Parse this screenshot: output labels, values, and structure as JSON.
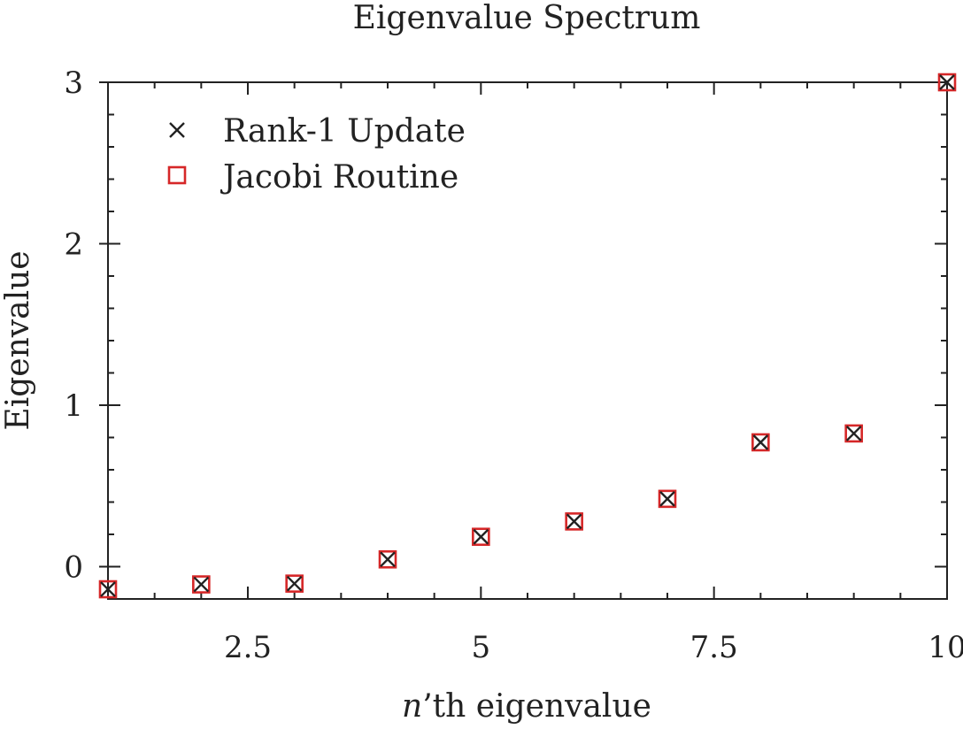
{
  "chart_data": {
    "type": "scatter",
    "title": "Eigenvalue Spectrum",
    "xlabel_italic": "n",
    "xlabel_rest": "’th eigenvalue",
    "ylabel": "Eigenvalue",
    "xlim": [
      1,
      10
    ],
    "ylim": [
      -0.2,
      3
    ],
    "x_ticks": [
      2.5,
      5,
      7.5,
      10
    ],
    "x_tick_labels": [
      "2.5",
      "5",
      "7.5",
      "10"
    ],
    "x_minor_step": 0.5,
    "y_ticks": [
      0,
      1,
      2,
      3
    ],
    "y_tick_labels": [
      "0",
      "1",
      "2",
      "3"
    ],
    "y_minor_step": 0.2,
    "grid": false,
    "legend_position": "top-left",
    "series": [
      {
        "name": "Rank-1 Update",
        "marker": "x",
        "color": "#222222",
        "x": [
          1,
          2,
          3,
          4,
          5,
          6,
          7,
          8,
          9,
          10
        ],
        "y": [
          -0.14,
          -0.11,
          -0.105,
          0.045,
          0.185,
          0.28,
          0.42,
          0.77,
          0.825,
          3.0
        ]
      },
      {
        "name": "Jacobi Routine",
        "marker": "square",
        "color": "#d62728",
        "x": [
          1,
          2,
          3,
          4,
          5,
          6,
          7,
          8,
          9,
          10
        ],
        "y": [
          -0.14,
          -0.11,
          -0.105,
          0.045,
          0.185,
          0.28,
          0.42,
          0.77,
          0.825,
          3.0
        ]
      }
    ]
  }
}
